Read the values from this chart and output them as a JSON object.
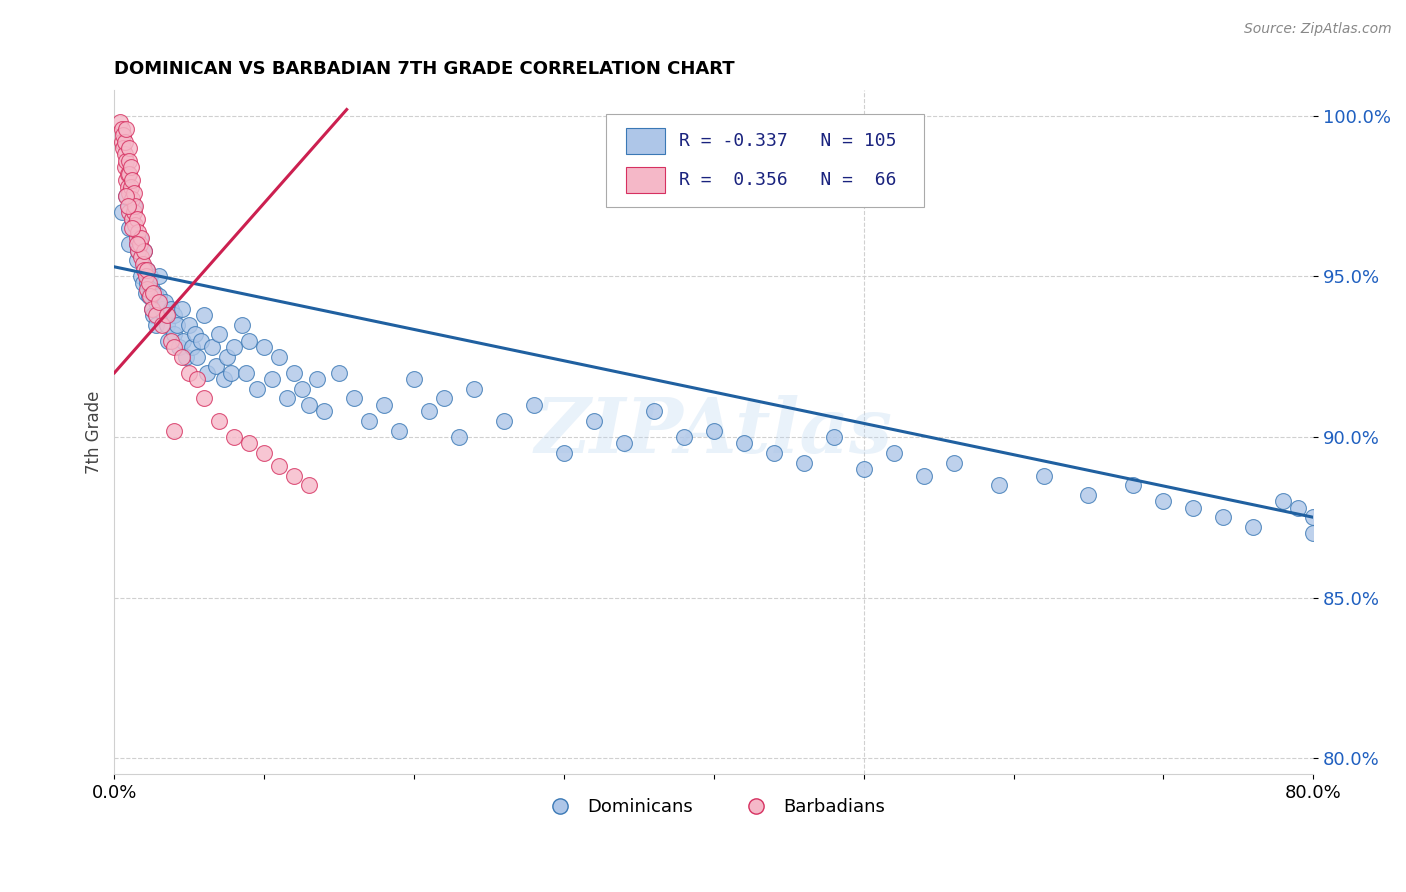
{
  "title": "DOMINICAN VS BARBADIAN 7TH GRADE CORRELATION CHART",
  "source": "Source: ZipAtlas.com",
  "ylabel": "7th Grade",
  "xlim": [
    0.0,
    0.8
  ],
  "ylim": [
    0.795,
    1.008
  ],
  "yticks": [
    0.8,
    0.85,
    0.9,
    0.95,
    1.0
  ],
  "ytick_labels": [
    "80.0%",
    "85.0%",
    "90.0%",
    "95.0%",
    "100.0%"
  ],
  "xticks": [
    0.0,
    0.1,
    0.2,
    0.3,
    0.4,
    0.5,
    0.6,
    0.7,
    0.8
  ],
  "xtick_labels": [
    "0.0%",
    "",
    "",
    "",
    "",
    "",
    "",
    "",
    "80.0%"
  ],
  "blue_R": "-0.337",
  "blue_N": "105",
  "pink_R": "0.356",
  "pink_N": "66",
  "blue_color": "#aec6e8",
  "blue_edge_color": "#3a78b5",
  "pink_color": "#f5b8c8",
  "pink_edge_color": "#d63060",
  "blue_line_color": "#2060a0",
  "pink_line_color": "#cc2050",
  "legend_text_color": "#1a237e",
  "axis_label_color": "#2060c0",
  "background_color": "#ffffff",
  "watermark": "ZIPAtlas",
  "blue_line_x0": 0.0,
  "blue_line_y0": 0.953,
  "blue_line_x1": 0.8,
  "blue_line_y1": 0.875,
  "pink_line_x0": 0.0,
  "pink_line_y0": 0.92,
  "pink_line_x1": 0.155,
  "pink_line_y1": 1.002,
  "blue_scatter_x": [
    0.005,
    0.008,
    0.01,
    0.01,
    0.012,
    0.013,
    0.015,
    0.015,
    0.016,
    0.017,
    0.018,
    0.019,
    0.02,
    0.02,
    0.021,
    0.022,
    0.022,
    0.023,
    0.024,
    0.025,
    0.025,
    0.026,
    0.027,
    0.028,
    0.028,
    0.03,
    0.03,
    0.032,
    0.033,
    0.034,
    0.035,
    0.036,
    0.038,
    0.04,
    0.04,
    0.042,
    0.043,
    0.045,
    0.046,
    0.048,
    0.05,
    0.052,
    0.054,
    0.055,
    0.058,
    0.06,
    0.062,
    0.065,
    0.068,
    0.07,
    0.073,
    0.075,
    0.078,
    0.08,
    0.085,
    0.088,
    0.09,
    0.095,
    0.1,
    0.105,
    0.11,
    0.115,
    0.12,
    0.125,
    0.13,
    0.135,
    0.14,
    0.15,
    0.16,
    0.17,
    0.18,
    0.19,
    0.2,
    0.21,
    0.22,
    0.23,
    0.24,
    0.26,
    0.28,
    0.3,
    0.32,
    0.34,
    0.36,
    0.38,
    0.4,
    0.42,
    0.44,
    0.46,
    0.48,
    0.5,
    0.52,
    0.54,
    0.56,
    0.59,
    0.62,
    0.65,
    0.68,
    0.7,
    0.72,
    0.74,
    0.76,
    0.78,
    0.79,
    0.8,
    0.8
  ],
  "blue_scatter_y": [
    0.97,
    0.975,
    0.965,
    0.96,
    0.968,
    0.972,
    0.96,
    0.955,
    0.958,
    0.962,
    0.95,
    0.948,
    0.958,
    0.953,
    0.945,
    0.952,
    0.948,
    0.944,
    0.95,
    0.946,
    0.94,
    0.938,
    0.945,
    0.942,
    0.935,
    0.95,
    0.944,
    0.94,
    0.938,
    0.942,
    0.935,
    0.93,
    0.94,
    0.938,
    0.932,
    0.935,
    0.928,
    0.94,
    0.93,
    0.925,
    0.935,
    0.928,
    0.932,
    0.925,
    0.93,
    0.938,
    0.92,
    0.928,
    0.922,
    0.932,
    0.918,
    0.925,
    0.92,
    0.928,
    0.935,
    0.92,
    0.93,
    0.915,
    0.928,
    0.918,
    0.925,
    0.912,
    0.92,
    0.915,
    0.91,
    0.918,
    0.908,
    0.92,
    0.912,
    0.905,
    0.91,
    0.902,
    0.918,
    0.908,
    0.912,
    0.9,
    0.915,
    0.905,
    0.91,
    0.895,
    0.905,
    0.898,
    0.908,
    0.9,
    0.902,
    0.898,
    0.895,
    0.892,
    0.9,
    0.89,
    0.895,
    0.888,
    0.892,
    0.885,
    0.888,
    0.882,
    0.885,
    0.88,
    0.878,
    0.875,
    0.872,
    0.88,
    0.878,
    0.875,
    0.87
  ],
  "pink_scatter_x": [
    0.004,
    0.005,
    0.005,
    0.006,
    0.006,
    0.007,
    0.007,
    0.007,
    0.008,
    0.008,
    0.008,
    0.009,
    0.009,
    0.01,
    0.01,
    0.01,
    0.01,
    0.01,
    0.011,
    0.011,
    0.012,
    0.012,
    0.012,
    0.013,
    0.013,
    0.014,
    0.014,
    0.015,
    0.015,
    0.016,
    0.016,
    0.017,
    0.018,
    0.018,
    0.019,
    0.02,
    0.02,
    0.021,
    0.022,
    0.022,
    0.023,
    0.024,
    0.025,
    0.026,
    0.028,
    0.03,
    0.032,
    0.035,
    0.038,
    0.04,
    0.045,
    0.05,
    0.055,
    0.06,
    0.07,
    0.08,
    0.09,
    0.1,
    0.11,
    0.12,
    0.13,
    0.008,
    0.009,
    0.012,
    0.015,
    0.04
  ],
  "pink_scatter_y": [
    0.998,
    0.996,
    0.992,
    0.994,
    0.99,
    0.988,
    0.984,
    0.992,
    0.986,
    0.98,
    0.996,
    0.982,
    0.978,
    0.99,
    0.986,
    0.982,
    0.976,
    0.97,
    0.984,
    0.978,
    0.98,
    0.974,
    0.968,
    0.976,
    0.97,
    0.972,
    0.966,
    0.968,
    0.962,
    0.964,
    0.958,
    0.96,
    0.956,
    0.962,
    0.954,
    0.958,
    0.952,
    0.95,
    0.952,
    0.946,
    0.948,
    0.944,
    0.94,
    0.945,
    0.938,
    0.942,
    0.935,
    0.938,
    0.93,
    0.928,
    0.925,
    0.92,
    0.918,
    0.912,
    0.905,
    0.9,
    0.898,
    0.895,
    0.891,
    0.888,
    0.885,
    0.975,
    0.972,
    0.965,
    0.96,
    0.902
  ]
}
